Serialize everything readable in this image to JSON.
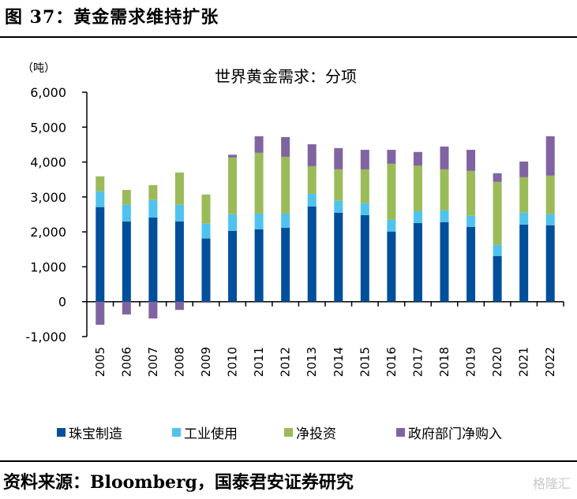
{
  "figure": {
    "title": "图 37：黄金需求维持扩张",
    "source": "资料来源：Bloomberg，国泰君安证券研究",
    "watermark": "格隆汇"
  },
  "chart_data": {
    "type": "bar",
    "stacked": true,
    "title": "世界黄金需求：分项",
    "unit_label": "（吨）",
    "xlabel": "",
    "ylabel": "吨",
    "ylim": [
      -1000,
      6000
    ],
    "yticks": [
      -1000,
      0,
      1000,
      2000,
      3000,
      4000,
      5000,
      6000
    ],
    "ytick_labels": [
      "-1,000",
      "0",
      "1,000",
      "2,000",
      "3,000",
      "4,000",
      "5,000",
      "6,000"
    ],
    "grid": false,
    "legend_position": "bottom",
    "categories": [
      "2005",
      "2006",
      "2007",
      "2008",
      "2009",
      "2010",
      "2011",
      "2012",
      "2013",
      "2014",
      "2015",
      "2016",
      "2017",
      "2018",
      "2019",
      "2020",
      "2021",
      "2022"
    ],
    "series": [
      {
        "name": "珠宝制造",
        "color": "#004f9a",
        "values": [
          2710,
          2300,
          2410,
          2300,
          1810,
          2030,
          2075,
          2120,
          2730,
          2550,
          2480,
          2010,
          2255,
          2280,
          2145,
          1310,
          2210,
          2190
        ]
      },
      {
        "name": "工业使用",
        "color": "#4fc3ee",
        "values": [
          450,
          475,
          500,
          475,
          425,
          475,
          450,
          405,
          360,
          340,
          340,
          335,
          335,
          335,
          315,
          315,
          340,
          315
        ]
      },
      {
        "name": "净投资",
        "color": "#9bbb59",
        "values": [
          430,
          425,
          430,
          925,
          835,
          1625,
          1740,
          1625,
          790,
          900,
          970,
          1605,
          1310,
          1175,
          1285,
          1805,
          1015,
          1105
        ]
      },
      {
        "name": "政府部门净购入",
        "color": "#8064a2",
        "values": [
          -660,
          -365,
          -480,
          -235,
          -30,
          80,
          475,
          565,
          630,
          610,
          560,
          400,
          390,
          655,
          605,
          250,
          450,
          1130
        ]
      }
    ]
  }
}
